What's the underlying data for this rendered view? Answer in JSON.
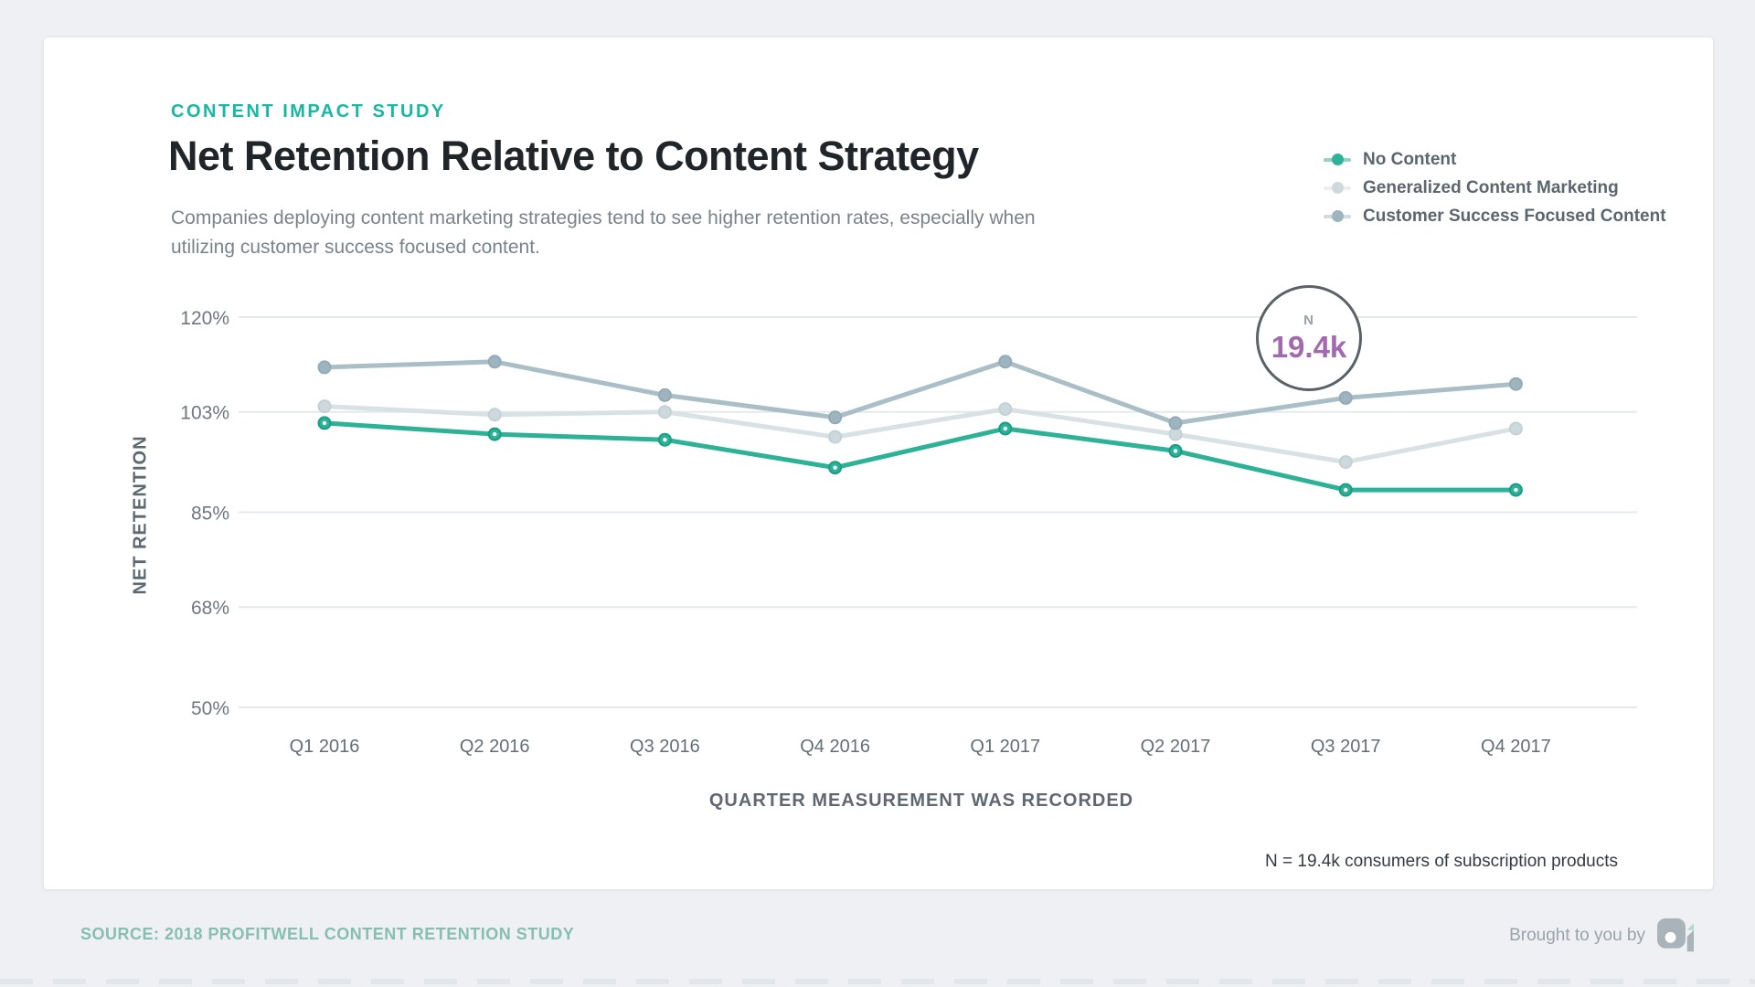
{
  "header": {
    "kicker": "CONTENT IMPACT STUDY",
    "title": "Net Retention Relative to Content Strategy",
    "subtitle": "Companies deploying content marketing strategies tend to see higher retention rates, especially when utilizing customer success focused content."
  },
  "badge": {
    "label": "N",
    "value": "19.4k"
  },
  "footer": {
    "note": "N = 19.4k consumers of subscription products",
    "source": "SOURCE: 2018 PROFITWELL CONTENT RETENTION STUDY",
    "brought_by": "Brought to you by",
    "logo_icon": "profitwell-logo-icon"
  },
  "colors": {
    "accent_teal": "#18b7a1",
    "badge_value_purple": "#a468b0",
    "source_text": "#86bfae",
    "grid_line": "#e6e9ec",
    "page_background": "#eef0f3"
  },
  "chart_data": {
    "type": "line",
    "title": "Net Retention Relative to Content Strategy",
    "xlabel": "QUARTER MEASUREMENT WAS RECORDED",
    "ylabel": "NET RETENTION",
    "categories": [
      "Q1 2016",
      "Q2 2016",
      "Q3 2016",
      "Q4 2016",
      "Q1 2017",
      "Q2 2017",
      "Q3 2017",
      "Q4 2017"
    ],
    "yticks": [
      120,
      103,
      85,
      68,
      50
    ],
    "y_unit": "%",
    "ylim": [
      50,
      120
    ],
    "grid": true,
    "legend_position": "top-right",
    "annotation": {
      "label": "N",
      "value": "19.4k"
    },
    "series": [
      {
        "name": "No Content",
        "color": "#2db197",
        "dot": "#2db197",
        "ring": "#1a9d83",
        "values": [
          101,
          99,
          98,
          93,
          100,
          96,
          89,
          89
        ]
      },
      {
        "name": "Generalized Content Marketing",
        "color": "#d8e2e5",
        "dot": "#cdd9dd",
        "ring": "#c3d1d6",
        "values": [
          104,
          102.5,
          103,
          98.5,
          103.5,
          99,
          94,
          100
        ]
      },
      {
        "name": "Customer Success Focused Content",
        "color": "#a9bec7",
        "dot": "#9eb4be",
        "ring": "#93abb6",
        "values": [
          111,
          112,
          106,
          102,
          112,
          101,
          105.5,
          108
        ]
      }
    ]
  }
}
